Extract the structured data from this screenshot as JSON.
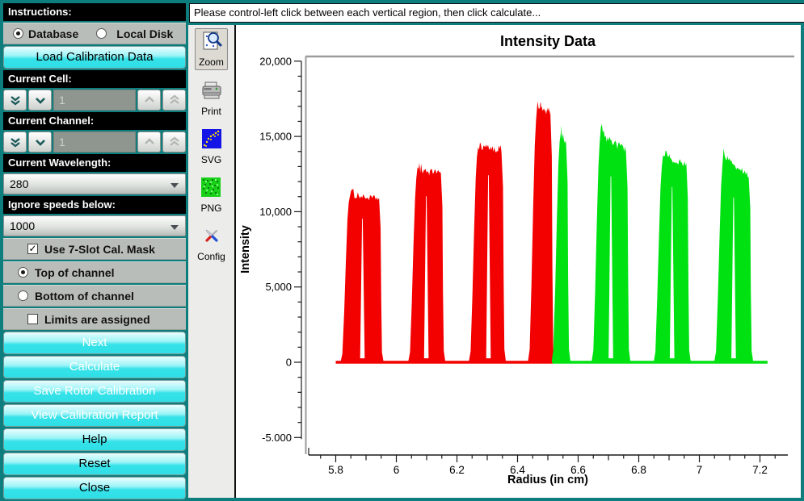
{
  "header": {
    "instruction_text": "Please control-left click between each vertical region, then click calculate..."
  },
  "sidebar": {
    "instructions_label": "Instructions:",
    "source": {
      "database": "Database",
      "local_disk": "Local Disk",
      "selected": "Database"
    },
    "load_button": "Load Calibration Data",
    "current_cell_label": "Current Cell:",
    "cell_value": "1",
    "current_channel_label": "Current Channel:",
    "channel_value": "1",
    "wavelength_label": "Current Wavelength:",
    "wavelength_value": "280",
    "speeds_label": "Ignore speeds below:",
    "speeds_value": "1000",
    "mask_checkbox": {
      "label": "Use 7-Slot Cal. Mask",
      "checked": true
    },
    "top_radio": {
      "label": "Top of channel",
      "selected": true
    },
    "bottom_radio": {
      "label": "Bottom of channel",
      "selected": false
    },
    "limits_checkbox": {
      "label": "Limits are assigned",
      "checked": false
    },
    "actions": [
      {
        "label": "Next",
        "enabled": false
      },
      {
        "label": "Calculate",
        "enabled": false
      },
      {
        "label": "Save Rotor Calibration",
        "enabled": false
      },
      {
        "label": "View Calibration Report",
        "enabled": false
      },
      {
        "label": "Help",
        "enabled": true
      },
      {
        "label": "Reset",
        "enabled": true
      },
      {
        "label": "Close",
        "enabled": true
      }
    ]
  },
  "toolbar": {
    "items": [
      {
        "label": "Zoom",
        "selected": true
      },
      {
        "label": "Print",
        "selected": false
      },
      {
        "label": "SVG",
        "selected": false
      },
      {
        "label": "PNG",
        "selected": false
      },
      {
        "label": "Config",
        "selected": false
      }
    ]
  },
  "icons": {
    "check": "✓"
  },
  "colors": {
    "window_teal": "#0d7d7d",
    "button_cyan": "#36e2e9",
    "series_red": "#f30000",
    "series_green": "#00e112",
    "canvas_frame": "#9b9b9b",
    "axis": "#1a1a1a"
  },
  "chart_data": {
    "type": "scatter",
    "title": "Intensity Data",
    "xlabel": "Radius (in cm)",
    "ylabel": "Intensity",
    "xlim": [
      5.7,
      7.29
    ],
    "ylim": [
      -6100,
      20400
    ],
    "grid": false,
    "legend": "none",
    "x_major_ticks": [
      5.8,
      6,
      6.2,
      6.4,
      6.6,
      6.8,
      7,
      7.2
    ],
    "x_tick_labels": [
      "5.8",
      "6",
      "6.2",
      "6.4",
      "6.6",
      "6.8",
      "7",
      "7.2"
    ],
    "x_minor_step": 0.05,
    "y_major_ticks": [
      20000,
      15000,
      10000,
      5000,
      0,
      -5000
    ],
    "y_tick_labels": [
      "20,000",
      "15,000",
      "10,000",
      "5,000",
      "0",
      "-5.000"
    ],
    "y_minor_step": 1000,
    "description": "Seven vertical intensity pulse regions (7-slot calibration mask); left four drawn red, right three-plus drawn green, all rising from a baseline at 0",
    "series": [
      {
        "name": "red",
        "color": "#f30000",
        "baseline": {
          "from": 5.8,
          "to": 6.515,
          "y": 0
        },
        "bands": [
          {
            "x_start": 5.822,
            "x_end": 5.948,
            "peak": 11300,
            "end": 10900,
            "notch": 5.888
          },
          {
            "x_start": 6.045,
            "x_end": 6.152,
            "peak": 13000,
            "end": 12600,
            "notch": 6.099
          },
          {
            "x_start": 6.245,
            "x_end": 6.352,
            "peak": 14500,
            "end": 14200,
            "notch": 6.304
          },
          {
            "x_start": 6.44,
            "x_end": 6.513,
            "peak": 17100,
            "end": 16700
          }
        ]
      },
      {
        "name": "green",
        "color": "#00e112",
        "baseline": {
          "from": 6.515,
          "to": 7.225,
          "y": 0
        },
        "bands": [
          {
            "x_start": 6.518,
            "x_end": 6.565,
            "peak": 15600,
            "end": 14600
          },
          {
            "x_start": 6.65,
            "x_end": 6.763,
            "peak": 15500,
            "end": 14100,
            "notch": 6.708
          },
          {
            "x_start": 6.855,
            "x_end": 6.962,
            "peak": 13800,
            "end": 13300,
            "notch": 6.91
          },
          {
            "x_start": 7.055,
            "x_end": 7.168,
            "peak": 13900,
            "end": 12500,
            "notch": 7.113
          }
        ]
      }
    ]
  }
}
